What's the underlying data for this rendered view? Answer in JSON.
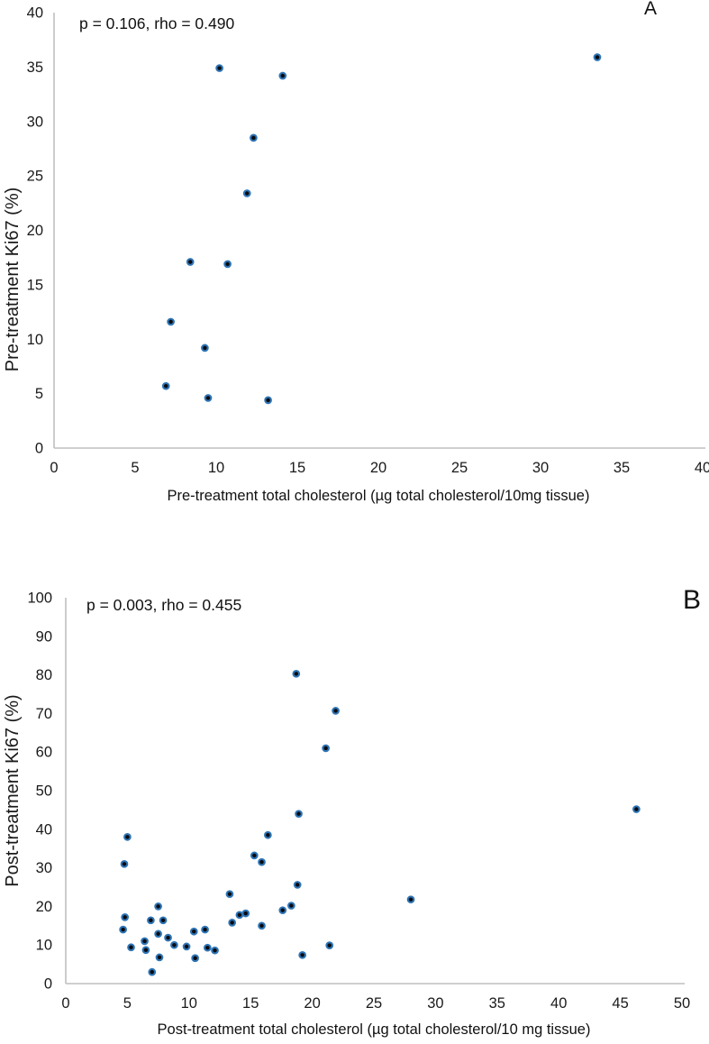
{
  "chart_data": [
    {
      "type": "scatter",
      "panel_label": "A",
      "annotation": "p = 0.106, rho = 0.490",
      "xlabel": "Pre-treatment total cholesterol (µg total cholesterol/10mg tissue)",
      "ylabel": "Pre-treatment Ki67 (%)",
      "xlim": [
        0,
        40
      ],
      "ylim": [
        0,
        40
      ],
      "xticks": [
        0,
        5,
        10,
        15,
        20,
        25,
        30,
        35,
        40
      ],
      "yticks": [
        0,
        5,
        10,
        15,
        20,
        25,
        30,
        35,
        40
      ],
      "grid": false,
      "legend": "none",
      "axis_color": "#bfbfbf",
      "marker_fill": "#0b0b10",
      "marker_stroke": "#2e75b6",
      "points": [
        [
          6.9,
          5.7
        ],
        [
          7.2,
          11.6
        ],
        [
          8.4,
          17.1
        ],
        [
          9.3,
          9.2
        ],
        [
          9.5,
          4.6
        ],
        [
          10.2,
          34.9
        ],
        [
          10.7,
          16.9
        ],
        [
          11.9,
          23.4
        ],
        [
          12.3,
          28.5
        ],
        [
          13.2,
          4.4
        ],
        [
          14.1,
          34.2
        ],
        [
          33.5,
          35.9
        ]
      ]
    },
    {
      "type": "scatter",
      "panel_label": "B",
      "annotation": "p = 0.003, rho = 0.455",
      "xlabel": "Post-treatment total cholesterol (µg total cholesterol/10 mg tissue)",
      "ylabel": "Post-treatment Ki67 (%)",
      "xlim": [
        0,
        50
      ],
      "ylim": [
        0,
        100
      ],
      "xticks": [
        0,
        5,
        10,
        15,
        20,
        25,
        30,
        35,
        40,
        45,
        50
      ],
      "yticks": [
        0,
        10,
        20,
        30,
        40,
        50,
        60,
        70,
        80,
        90,
        100
      ],
      "grid": false,
      "legend": "none",
      "axis_color": "#bfbfbf",
      "marker_fill": "#0b0b10",
      "marker_stroke": "#2e75b6",
      "points": [
        [
          4.65,
          14.0
        ],
        [
          4.75,
          31.0
        ],
        [
          4.8,
          17.2
        ],
        [
          5.0,
          38.0
        ],
        [
          5.3,
          9.4
        ],
        [
          6.4,
          11.0
        ],
        [
          6.5,
          8.7
        ],
        [
          6.9,
          16.4
        ],
        [
          7.0,
          3.0
        ],
        [
          7.5,
          20.0
        ],
        [
          7.5,
          12.9
        ],
        [
          7.6,
          6.8
        ],
        [
          7.9,
          16.4
        ],
        [
          8.3,
          11.9
        ],
        [
          8.8,
          10.0
        ],
        [
          9.8,
          9.6
        ],
        [
          10.4,
          13.5
        ],
        [
          10.5,
          6.6
        ],
        [
          11.3,
          14.0
        ],
        [
          11.5,
          9.3
        ],
        [
          12.1,
          8.6
        ],
        [
          13.3,
          23.2
        ],
        [
          13.5,
          15.8
        ],
        [
          14.1,
          17.8
        ],
        [
          14.6,
          18.2
        ],
        [
          15.3,
          33.2
        ],
        [
          15.9,
          31.5
        ],
        [
          15.9,
          15.0
        ],
        [
          16.4,
          38.5
        ],
        [
          17.6,
          19.0
        ],
        [
          18.3,
          20.2
        ],
        [
          18.7,
          80.3
        ],
        [
          18.8,
          25.6
        ],
        [
          18.9,
          44.0
        ],
        [
          19.2,
          7.4
        ],
        [
          21.1,
          61.0
        ],
        [
          21.4,
          9.9
        ],
        [
          21.9,
          70.7
        ],
        [
          28.0,
          21.8
        ],
        [
          46.3,
          45.2
        ]
      ]
    }
  ]
}
